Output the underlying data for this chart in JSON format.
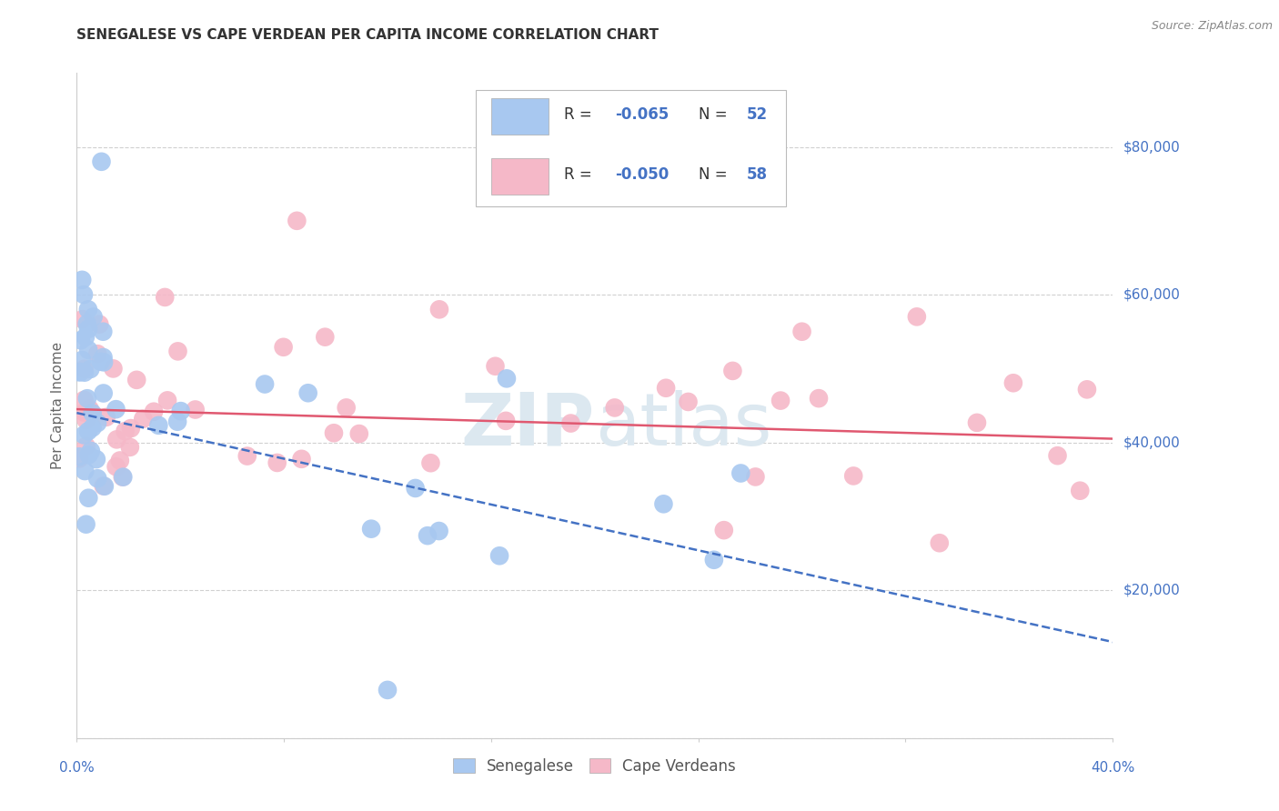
{
  "title": "SENEGALESE VS CAPE VERDEAN PER CAPITA INCOME CORRELATION CHART",
  "source": "Source: ZipAtlas.com",
  "ylabel": "Per Capita Income",
  "xlim": [
    0.0,
    0.4
  ],
  "ylim": [
    0,
    90000
  ],
  "senegalese_color": "#a8c8f0",
  "capeverdean_color": "#f5b8c8",
  "line_senegalese_color": "#4472c4",
  "line_capeverdean_color": "#e05870",
  "watermark_color": "#c8d8e8",
  "background_color": "#ffffff",
  "grid_color": "#d0d0d0",
  "tick_label_color": "#4472c4",
  "right_labels": {
    "80000": "$80,000",
    "60000": "$60,000",
    "40000": "$40,000",
    "20000": "$20,000"
  },
  "legend_entries": [
    {
      "color": "#a8c8f0",
      "r": "-0.065",
      "n": "52"
    },
    {
      "color": "#f5b8c8",
      "r": "-0.050",
      "n": "58"
    }
  ],
  "bottom_legend": [
    "Senegalese",
    "Cape Verdeans"
  ],
  "cv_line_y": [
    44500,
    40500
  ],
  "sen_line_y": [
    44000,
    13000
  ]
}
